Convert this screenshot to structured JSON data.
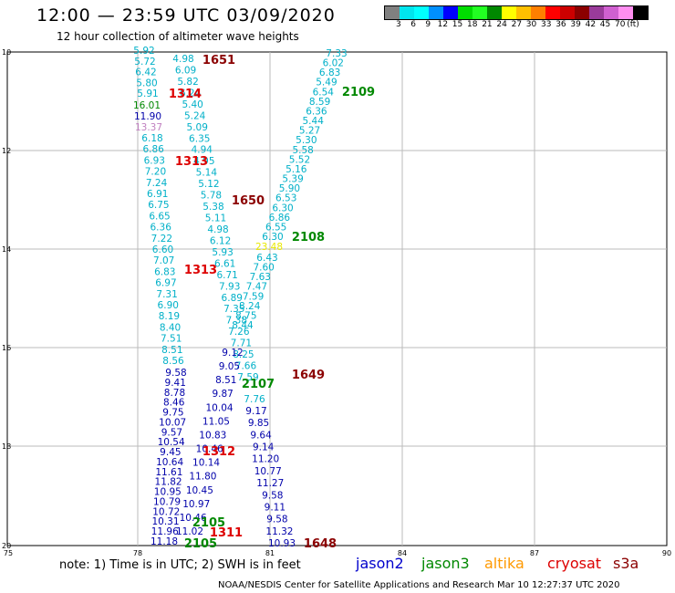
{
  "title": "12:00 — 23:59 UTC 03/09/2020",
  "subtitle": "12 hour collection of altimeter wave heights",
  "colorbar": {
    "colors": [
      "#808080",
      "#00e5ee",
      "#00ffff",
      "#0090ff",
      "#0000ff",
      "#00dd00",
      "#22ff22",
      "#008800",
      "#ffff00",
      "#ffc000",
      "#ff7f00",
      "#ff0000",
      "#cc0000",
      "#8b0000",
      "#9a3b9a",
      "#d060d0",
      "#ff8ef0",
      "#000000"
    ],
    "labels": [
      "3",
      "6",
      "9",
      "12",
      "15",
      "18",
      "21",
      "24",
      "27",
      "30",
      "33",
      "36",
      "39",
      "42",
      "45",
      "70",
      "(ft)"
    ]
  },
  "axes": {
    "lat_labels": [
      "10",
      "12",
      "14",
      "16",
      "18",
      "20"
    ],
    "lon_labels": [
      "75",
      "78",
      "81",
      "84",
      "87",
      "90"
    ]
  },
  "note": "note: 1) Time is in UTC; 2) SWH is in feet",
  "satellites": [
    {
      "name": "jason2",
      "color": "#0000cc"
    },
    {
      "name": "jason3",
      "color": "#008800"
    },
    {
      "name": "altika",
      "color": "#ff9900"
    },
    {
      "name": "cryosat",
      "color": "#dd0000"
    },
    {
      "name": "s3a",
      "color": "#8b0000"
    }
  ],
  "footer": "NOAA/NESDIS Center for Satellite Applications and Research    Mar 10 12:27:37 UTC 2020",
  "tracks": {
    "A_cyan": {
      "color": "#00b0c8",
      "values": [
        "5.92",
        "5.72",
        "6.42",
        "5.80",
        "5.91"
      ]
    },
    "A_mixed": [
      {
        "v": "16.01",
        "c": "#008800"
      },
      {
        "v": "11.90",
        "c": "#0000aa"
      },
      {
        "v": "13.37",
        "c": "#c080c0"
      }
    ],
    "A_cyan2": {
      "color": "#00b0c8",
      "values": [
        "6.18",
        "6.86",
        "6.93",
        "7.20",
        "7.24",
        "6.91",
        "6.75",
        "6.65",
        "6.36",
        "7.22",
        "6.60",
        "7.07",
        "6.83",
        "6.97",
        "7.31",
        "6.90",
        "8.19",
        "8.40",
        "7.51",
        "8.51",
        "8.56"
      ]
    },
    "A_blue": {
      "color": "#0000aa",
      "values": [
        "9.58",
        "9.41",
        "8.78",
        "8.46",
        "9.75",
        "10.07",
        "9.57",
        "10.54",
        "9.45",
        "10.64",
        "11.61",
        "11.82",
        "10.95",
        "10.79",
        "10.72",
        "10.31",
        "11.96",
        "11.18"
      ]
    },
    "B_cyan": {
      "color": "#00b0c8",
      "values": [
        "4.98",
        "6.09",
        "5.82",
        "6.24",
        "5.40",
        "5.24",
        "5.09",
        "6.35",
        "4.94",
        "4.95",
        "5.14",
        "5.12",
        "5.78",
        "5.38",
        "5.11",
        "4.98",
        "6.12",
        "5.93",
        "6.61",
        "6.71",
        "7.93",
        "6.89",
        "7.35",
        "7.38",
        "7.26",
        "7.71",
        "8.25",
        "7.66",
        "7.59"
      ]
    },
    "B_blue": {
      "color": "#0000aa",
      "values": [
        "9.12",
        "9.05",
        "8.51",
        "9.87",
        "10.04",
        "11.05",
        "10.83",
        "10.46",
        "10.14",
        "11.80",
        "10.45",
        "10.97",
        "10.46",
        "11.02"
      ]
    },
    "C_cyan": {
      "color": "#00b0c8",
      "values": [
        "7.33",
        "6.02",
        "6.83",
        "5.49",
        "6.54",
        "8.59",
        "6.36",
        "5.44",
        "5.27",
        "5.30",
        "5.58",
        "5.52",
        "5.16",
        "5.39",
        "5.90",
        "6.53",
        "6.30",
        "6.86",
        "6.55",
        "6.30"
      ]
    },
    "C_yellow": {
      "color": "#e8e800",
      "values": [
        "23.48"
      ]
    },
    "C_cyan2": {
      "color": "#00b0c8",
      "values": [
        "6.43",
        "7.60",
        "7.63",
        "7.47",
        "7.59",
        "8.24",
        "8.75",
        "8.44"
      ]
    },
    "C_blue": {
      "color": "#0000aa",
      "values": [
        "9.17",
        "9.85",
        "9.64",
        "9.14",
        "11.20",
        "10.77",
        "11.27",
        "9.58",
        "9.11",
        "9.58",
        "11.32",
        "10.93"
      ]
    },
    "C_cyan3": {
      "color": "#00b0c8",
      "values": [
        "7.76"
      ]
    },
    "time_labels": [
      {
        "t": "1651",
        "color": "#8b0000"
      },
      {
        "t": "1314",
        "color": "#dd0000"
      },
      {
        "t": "2109",
        "color": "#008800"
      },
      {
        "t": "1313",
        "color": "#dd0000"
      },
      {
        "t": "1650",
        "color": "#8b0000"
      },
      {
        "t": "2108",
        "color": "#008800"
      },
      {
        "t": "1313",
        "color": "#dd0000"
      },
      {
        "t": "1649",
        "color": "#8b0000"
      },
      {
        "t": "2107",
        "color": "#008800"
      },
      {
        "t": "1312",
        "color": "#dd0000"
      },
      {
        "t": "2105",
        "color": "#008800"
      },
      {
        "t": "1311",
        "color": "#dd0000"
      },
      {
        "t": "2105",
        "color": "#008800"
      },
      {
        "t": "1648",
        "color": "#8b0000"
      }
    ]
  }
}
